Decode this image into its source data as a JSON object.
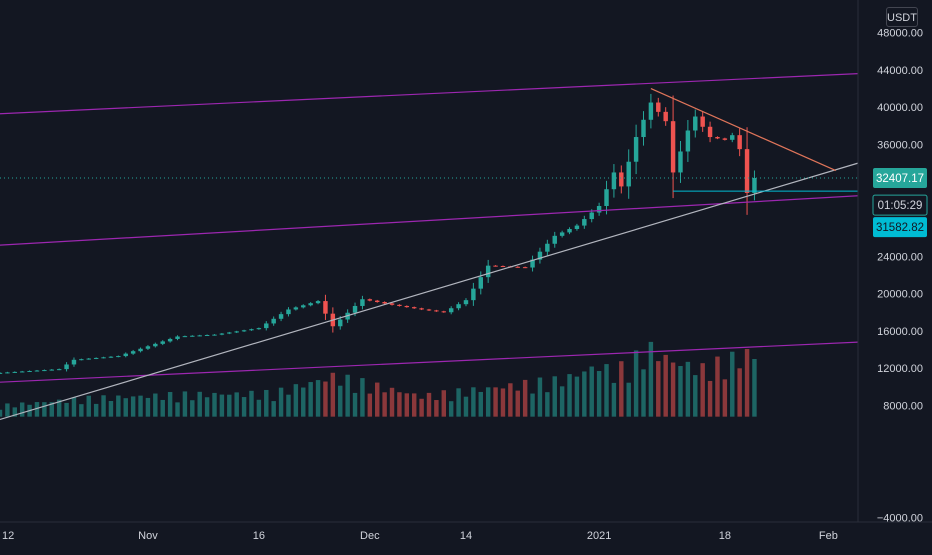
{
  "chart_data": {
    "type": "candlestick",
    "currency": "USDT",
    "y_axis": {
      "ticks": [
        -4000,
        8000,
        12000,
        16000,
        20000,
        24000,
        36000,
        40000,
        44000,
        48000
      ],
      "tick_labels": [
        "−4000.00",
        "8000.00",
        "12000.00",
        "16000.00",
        "20000.00",
        "24000.00",
        "36000.00",
        "40000.00",
        "44000.00",
        "48000.00"
      ],
      "ylim": [
        -4500,
        51500
      ],
      "position": "right"
    },
    "x_axis": {
      "tick_labels": [
        "12",
        "Nov",
        "16",
        "Dec",
        "14",
        "2021",
        "18",
        "Feb"
      ],
      "tick_dates": [
        "2020-10-12",
        "2020-11-01",
        "2020-11-16",
        "2020-12-01",
        "2020-12-14",
        "2021-01-01",
        "2021-01-18",
        "2021-02-01"
      ],
      "xlim": [
        "2020-10-12",
        "2021-02-05"
      ]
    },
    "price_labels": [
      {
        "label": "32407.17",
        "value": 32407.17,
        "style": "last-price"
      },
      {
        "label": "01:05:29",
        "value": 30600,
        "style": "countdown"
      },
      {
        "label": "31582.82",
        "value": 30550,
        "style": "horizontal-line"
      }
    ],
    "price_series": [
      {
        "date": "2020-10-12",
        "close": 11500
      },
      {
        "date": "2020-10-20",
        "close": 11900
      },
      {
        "date": "2020-10-22",
        "close": 12900
      },
      {
        "date": "2020-10-28",
        "close": 13300
      },
      {
        "date": "2020-11-05",
        "close": 15400
      },
      {
        "date": "2020-11-10",
        "close": 15600
      },
      {
        "date": "2020-11-16",
        "close": 16300
      },
      {
        "date": "2020-11-20",
        "close": 18300
      },
      {
        "date": "2020-11-24",
        "close": 19200
      },
      {
        "date": "2020-11-26",
        "close": 16500
      },
      {
        "date": "2020-11-30",
        "close": 19400
      },
      {
        "date": "2020-12-04",
        "close": 18800
      },
      {
        "date": "2020-12-08",
        "close": 18300
      },
      {
        "date": "2020-12-11",
        "close": 18000
      },
      {
        "date": "2020-12-14",
        "close": 19300
      },
      {
        "date": "2020-12-17",
        "close": 23000
      },
      {
        "date": "2020-12-22",
        "close": 22800
      },
      {
        "date": "2020-12-26",
        "close": 26200
      },
      {
        "date": "2020-12-29",
        "close": 27300
      },
      {
        "date": "2021-01-01",
        "close": 29400
      },
      {
        "date": "2021-01-03",
        "close": 33000
      },
      {
        "date": "2021-01-04",
        "close": 31500
      },
      {
        "date": "2021-01-06",
        "close": 36800
      },
      {
        "date": "2021-01-08",
        "close": 40500
      },
      {
        "date": "2021-01-10",
        "close": 38500
      },
      {
        "date": "2021-01-11",
        "close": 33000
      },
      {
        "date": "2021-01-13",
        "close": 37500
      },
      {
        "date": "2021-01-14",
        "close": 39000
      },
      {
        "date": "2021-01-16",
        "close": 36800
      },
      {
        "date": "2021-01-18",
        "close": 36500
      },
      {
        "date": "2021-01-19",
        "close": 37000
      },
      {
        "date": "2021-01-20",
        "close": 35500
      },
      {
        "date": "2021-01-21",
        "close": 30800
      },
      {
        "date": "2021-01-22",
        "close": 32407
      }
    ],
    "volume_series": {
      "unit": "relative",
      "dates": [
        "2020-10-12",
        "2020-10-24",
        "2020-11-05",
        "2020-11-18",
        "2020-11-26",
        "2020-12-08",
        "2020-12-18",
        "2020-12-27",
        "2021-01-01",
        "2021-01-03",
        "2021-01-08",
        "2021-01-11",
        "2021-01-15",
        "2021-01-21"
      ],
      "values": [
        0.15,
        0.25,
        0.3,
        0.32,
        0.55,
        0.28,
        0.4,
        0.5,
        0.7,
        0.6,
        0.92,
        0.75,
        0.65,
        0.85
      ]
    },
    "trend_lines": [
      {
        "color": "#9c27b0",
        "from": [
          "2020-10-12",
          39300
        ],
        "to": [
          "2021-02-05",
          43600
        ]
      },
      {
        "color": "#9c27b0",
        "from": [
          "2020-10-12",
          25200
        ],
        "to": [
          "2021-02-05",
          30500
        ]
      },
      {
        "color": "#9c27b0",
        "from": [
          "2020-10-12",
          10500
        ],
        "to": [
          "2021-02-05",
          14800
        ]
      },
      {
        "color": "#b2b5be",
        "from": [
          "2020-10-12",
          6500
        ],
        "to": [
          "2021-02-05",
          34000
        ]
      },
      {
        "color": "#e0755a",
        "from": [
          "2021-01-08",
          42000
        ],
        "to": [
          "2021-02-02",
          33200
        ]
      }
    ],
    "colors": {
      "background": "#131722",
      "up": "#26a69a",
      "down": "#ef5350",
      "last_price": "#26a69a",
      "support": "#00bcd4",
      "axis_text": "#d1d4dc"
    },
    "grid": false
  }
}
